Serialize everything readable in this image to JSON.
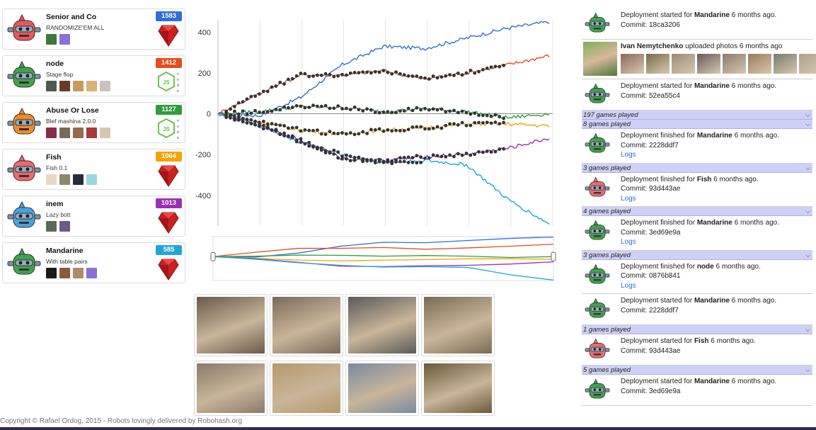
{
  "teams": [
    {
      "name": "Senior and Co",
      "motto": "RANDOMIZE'EM ALL",
      "score": "1583",
      "score_color": "#2f6fd9",
      "robot_color": "#e8575c",
      "lang": "ruby-icon",
      "members": [
        "#3a7a3a",
        "#8a6fd9"
      ]
    },
    {
      "name": "node",
      "motto": "Stage flop",
      "score": "1412",
      "score_color": "#e44e1b",
      "robot_color": "#3fa34d",
      "lang": "nodejs-icon",
      "members": [
        "#4f5a4f",
        "#6a3a2a",
        "#c99a5a",
        "#d9b27a",
        "#c9c2bf"
      ]
    },
    {
      "name": "Abuse Or Lose",
      "motto": "Blef mashina 2.0.0",
      "score": "1127",
      "score_color": "#2e9e3a",
      "robot_color": "#f08b2c",
      "lang": "nodejs-icon",
      "members": [
        "#8a2a4a",
        "#7a6a5a",
        "#9a6a4a",
        "#a83a3a",
        "#d8c6b0"
      ]
    },
    {
      "name": "Fish",
      "motto": "Fish 0.1",
      "score": "1064",
      "score_color": "#f5a300",
      "robot_color": "#ea6a6f",
      "lang": "ruby-icon",
      "members": [
        "#e9d7c6",
        "#8a8a6a",
        "#2a2a3a",
        "#9ad6e0"
      ]
    },
    {
      "name": "inem",
      "motto": "Lazy bott",
      "score": "1013",
      "score_color": "#9a2fb6",
      "robot_color": "#4aa3e0",
      "lang": "ruby-icon",
      "members": [
        "#5a6a5a",
        "#6a5a8a"
      ]
    },
    {
      "name": "Mandarine",
      "motto": "With table pairs",
      "score": "585",
      "score_color": "#1ea6d6",
      "robot_color": "#3fa34d",
      "lang": "ruby-icon",
      "members": [
        "#1a1a1a",
        "#8a5a3a",
        "#b08a6a",
        "#8a6fd9"
      ]
    }
  ],
  "chart_data": [
    {
      "type": "line",
      "title": "",
      "xlabel": "",
      "ylabel": "",
      "ylim": [
        -550,
        460
      ],
      "yticks": [
        400,
        200,
        0,
        -200,
        -400
      ],
      "x_count": 9,
      "grid": true,
      "series": [
        {
          "color": "#2f6fd9",
          "values": [
            0,
            -10,
            80,
            240,
            330,
            320,
            370,
            420,
            450
          ]
        },
        {
          "color": "#e44e1b",
          "values": [
            0,
            100,
            190,
            190,
            210,
            170,
            200,
            240,
            285
          ]
        },
        {
          "color": "#2e9e3a",
          "values": [
            0,
            10,
            35,
            30,
            10,
            25,
            10,
            -20,
            0
          ]
        },
        {
          "color": "#f5a300",
          "values": [
            0,
            -40,
            -80,
            -100,
            -80,
            -70,
            -50,
            -50,
            -60
          ]
        },
        {
          "color": "#9a2fb6",
          "values": [
            0,
            -50,
            -130,
            -220,
            -230,
            -210,
            -200,
            -170,
            -120
          ]
        },
        {
          "color": "#1ea6d6",
          "values": [
            0,
            -60,
            -140,
            -200,
            -240,
            -230,
            -250,
            -420,
            -540
          ]
        }
      ]
    },
    {
      "type": "line",
      "title": "",
      "xlabel": "",
      "ylabel": "",
      "ylim": [
        -550,
        460
      ],
      "grid": false,
      "series_ref": "same as main chart"
    }
  ],
  "photos": [
    {
      "color": "#6b5a4b"
    },
    {
      "color": "#7a6a5a"
    },
    {
      "color": "#5a5a5a"
    },
    {
      "color": "#7b6b55"
    },
    {
      "color": "#8a7a6a"
    },
    {
      "color": "#b59a6a"
    },
    {
      "color": "#7a8aa0"
    },
    {
      "color": "#6a5a3a"
    }
  ],
  "feed": [
    {
      "kind": "entry",
      "icon_color": "#3fa34d",
      "prefix": "Deployment started for ",
      "team": "Mandarine",
      "suffix": " 6 months ago.",
      "commit": "Commit: 18ca3206"
    },
    {
      "kind": "photos",
      "user": "Ivan Nemytchenko",
      "text": " uploaded photos 6 months ago"
    },
    {
      "kind": "entry",
      "icon_color": "#3fa34d",
      "prefix": "Deployment started for ",
      "team": "Mandarine",
      "suffix": " 6 months ago.",
      "commit": "Commit: 52ea55c4"
    },
    {
      "kind": "games",
      "label": "197 games played"
    },
    {
      "kind": "games",
      "label": "8 games played"
    },
    {
      "kind": "entry",
      "icon_color": "#3fa34d",
      "prefix": "Deployment finished for ",
      "team": "Mandarine",
      "suffix": " 6 months ago.",
      "commit": "Commit: 2228ddf7",
      "logs": "Logs"
    },
    {
      "kind": "games",
      "label": "3 games played"
    },
    {
      "kind": "entry",
      "icon_color": "#ea6a6f",
      "prefix": "Deployment finished for ",
      "team": "Fish",
      "suffix": " 6 months ago.",
      "commit": "Commit: 93d443ae",
      "logs": "Logs"
    },
    {
      "kind": "games",
      "label": "4 games played"
    },
    {
      "kind": "entry",
      "icon_color": "#3fa34d",
      "prefix": "Deployment finished for ",
      "team": "Mandarine",
      "suffix": " 6 months ago.",
      "commit": "Commit: 3ed69e9a",
      "logs": "Logs"
    },
    {
      "kind": "games",
      "label": "3 games played"
    },
    {
      "kind": "entry",
      "icon_color": "#3fa34d",
      "prefix": "Deployment finished for ",
      "team": "node",
      "suffix": " 6 months ago.",
      "commit": "Commit: 0876b841",
      "logs": "Logs"
    },
    {
      "kind": "entry",
      "icon_color": "#3fa34d",
      "prefix": "Deployment started for ",
      "team": "Mandarine",
      "suffix": " 6 months ago.",
      "commit": "Commit: 2228ddf7"
    },
    {
      "kind": "games",
      "label": "1 games played"
    },
    {
      "kind": "entry",
      "icon_color": "#ea6a6f",
      "prefix": "Deployment started for ",
      "team": "Fish",
      "suffix": " 6 months ago.",
      "commit": "Commit: 93d443ae"
    },
    {
      "kind": "games",
      "label": "5 games played"
    },
    {
      "kind": "entry",
      "icon_color": "#3fa34d",
      "prefix": "Deployment started for ",
      "team": "Mandarine",
      "suffix": " 6 months ago.",
      "commit": "Commit: 3ed69e9a"
    }
  ],
  "footer": {
    "text": "Copyright © Rafael Ordog, 2015 - Robots lovingly delivered by Robohash.org"
  }
}
